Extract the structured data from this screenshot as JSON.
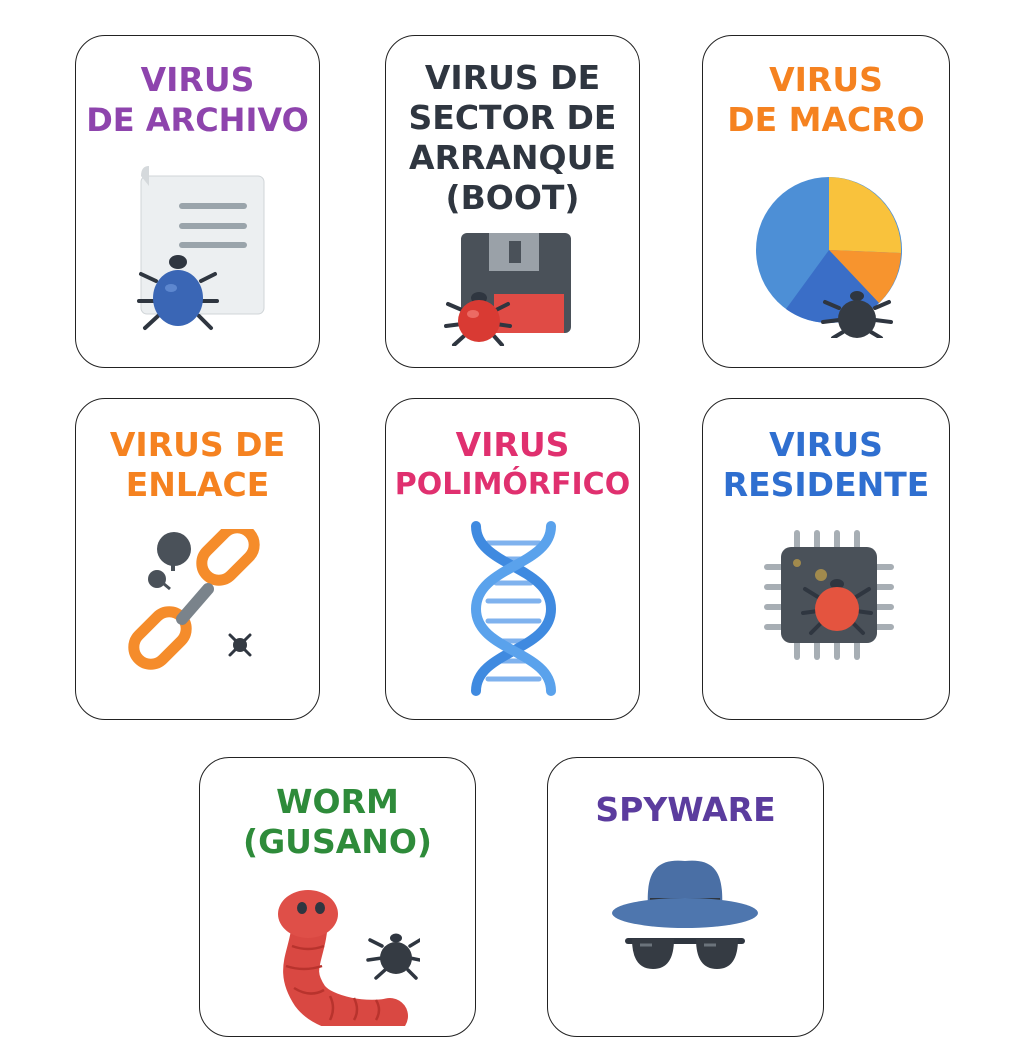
{
  "cards": [
    {
      "lines": [
        "VIRUS",
        "DE ARCHIVO"
      ],
      "color": "#8e44ad",
      "icon": "document-bug-icon"
    },
    {
      "lines": [
        "VIRUS DE",
        "SECTOR DE",
        "ARRANQUE",
        "(BOOT)"
      ],
      "color": "#2f3640",
      "icon": "floppy-disk-bug-icon"
    },
    {
      "lines": [
        "VIRUS",
        "DE MACRO"
      ],
      "color": "#f58220",
      "icon": "pie-chart-bug-icon"
    },
    {
      "lines": [
        "VIRUS DE",
        "ENLACE"
      ],
      "color": "#f58220",
      "icon": "broken-chain-link-icon"
    },
    {
      "lines": [
        "VIRUS",
        "POLIMÓRFICO"
      ],
      "color": "#e0306f",
      "icon": "dna-helix-icon"
    },
    {
      "lines": [
        "VIRUS",
        "RESIDENTE"
      ],
      "color": "#2f6fd0",
      "icon": "cpu-chip-bug-icon"
    },
    {
      "lines": [
        "WORM",
        "(GUSANO)"
      ],
      "color": "#2e8b3a",
      "icon": "worm-bug-icon"
    },
    {
      "lines": [
        "SPYWARE"
      ],
      "color": "#5b3c9e",
      "icon": "spy-hat-glasses-icon"
    }
  ]
}
